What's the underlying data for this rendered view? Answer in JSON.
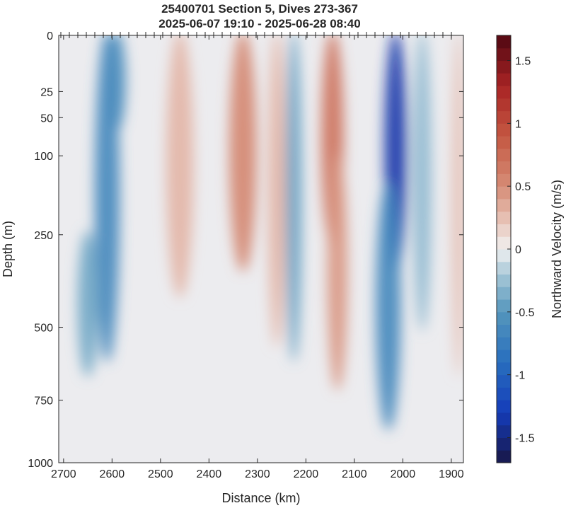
{
  "chart_data": {
    "type": "heatmap",
    "title": "25400701 Section 5, Dives 273-367",
    "subtitle": "2025-06-07 19:10 - 2025-06-28 08:40",
    "xlabel": "Distance (km)",
    "ylabel": "Depth (m)",
    "colorbar_label": "Northward Velocity (m/s)",
    "x_reversed": true,
    "xlim": [
      2710,
      1875
    ],
    "x_ticks": [
      2700,
      2600,
      2500,
      2400,
      2300,
      2200,
      2100,
      2000,
      1900
    ],
    "x_tick_labels": [
      "2700",
      "2600",
      "2500",
      "2400",
      "2300",
      "2200",
      "2100",
      "2000",
      "1900"
    ],
    "y_scale": "stretched (square-root-like), depth increasing downward",
    "ylim": [
      0,
      1000
    ],
    "y_ticks": [
      0,
      25,
      50,
      100,
      250,
      500,
      750,
      1000
    ],
    "y_tick_labels": [
      "0",
      "25",
      "50",
      "100",
      "250",
      "500",
      "750",
      "1000"
    ],
    "clim": [
      -1.7,
      1.7
    ],
    "colorbar_ticks": [
      -1.5,
      -1,
      -0.5,
      0,
      0.5,
      1,
      1.5
    ],
    "colorbar_tick_labels": [
      "-1.5",
      "-1",
      "-0.5",
      "0",
      "0.5",
      "1",
      "1.5"
    ],
    "colormap": "diverging blue-white-red",
    "dive_marker_count": 47,
    "features": [
      {
        "x": 2610,
        "width_km": 40,
        "depth_center": 150,
        "depth_extent": 900,
        "velocity": -0.65
      },
      {
        "x": 2650,
        "width_km": 30,
        "depth_center": 450,
        "depth_extent": 400,
        "velocity": -0.4
      },
      {
        "x": 2590,
        "width_km": 25,
        "depth_center": 20,
        "depth_extent": 80,
        "velocity": -0.6
      },
      {
        "x": 2460,
        "width_km": 45,
        "depth_center": 150,
        "depth_extent": 500,
        "velocity": 0.3
      },
      {
        "x": 2330,
        "width_km": 45,
        "depth_center": 80,
        "depth_extent": 500,
        "velocity": 0.55
      },
      {
        "x": 2260,
        "width_km": 25,
        "depth_center": 200,
        "depth_extent": 700,
        "velocity": 0.3
      },
      {
        "x": 2225,
        "width_km": 20,
        "depth_center": 200,
        "depth_extent": 800,
        "velocity": -0.45
      },
      {
        "x": 2145,
        "width_km": 35,
        "depth_center": 70,
        "depth_extent": 400,
        "velocity": 0.7
      },
      {
        "x": 2135,
        "width_km": 30,
        "depth_center": 400,
        "depth_extent": 600,
        "velocity": 0.45
      },
      {
        "x": 2015,
        "width_km": 35,
        "depth_center": 80,
        "depth_extent": 500,
        "velocity": -1.35
      },
      {
        "x": 2030,
        "width_km": 40,
        "depth_center": 500,
        "depth_extent": 700,
        "velocity": -0.65
      },
      {
        "x": 1960,
        "width_km": 25,
        "depth_center": 150,
        "depth_extent": 700,
        "velocity": -0.3
      },
      {
        "x": 1885,
        "width_km": 15,
        "depth_center": 200,
        "depth_extent": 900,
        "velocity": 0.25
      }
    ]
  }
}
